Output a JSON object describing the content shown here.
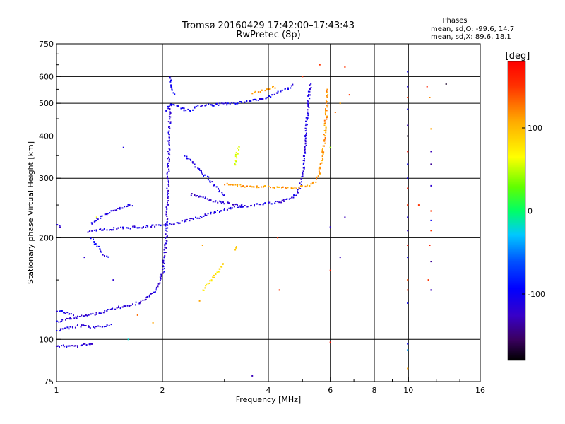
{
  "chart_data": {
    "type": "scatter",
    "title": "Tromsø 20160429 17:42:00–17:43:43",
    "subtitle": "RwPretec (8p)",
    "xlabel": "Frequency [MHz]",
    "ylabel": "Stationary phase Virtual Height [km]",
    "x_scale": "log",
    "y_scale": "log",
    "xlim": [
      1,
      16
    ],
    "ylim": [
      75,
      750
    ],
    "x_ticks": [
      1,
      2,
      4,
      6,
      8,
      10,
      16
    ],
    "y_ticks": [
      75,
      100,
      200,
      300,
      400,
      500,
      600,
      750
    ],
    "x_grid": [
      2,
      4,
      6,
      8,
      10
    ],
    "y_grid": [
      100,
      200,
      300,
      400,
      500,
      600
    ],
    "phase_stats": {
      "title": "Phases",
      "line_o": "mean, sd,O: -99.6, 14.7",
      "line_x": "mean, sd,X: 89.6, 18.1"
    },
    "colorbar": {
      "label": "[deg]",
      "range": [
        -180,
        180
      ],
      "ticks": [
        100,
        0,
        -100
      ],
      "tick_labels": [
        "100",
        "0",
        "-100"
      ]
    },
    "traces": [
      {
        "phase": -115,
        "points": [
          [
            1.0,
            96
          ],
          [
            1.05,
            96
          ],
          [
            1.1,
            96
          ],
          [
            1.15,
            96
          ],
          [
            1.2,
            97
          ],
          [
            1.24,
            97
          ],
          [
            1.27,
            98
          ]
        ]
      },
      {
        "phase": -115,
        "points": [
          [
            1.0,
            107
          ],
          [
            1.05,
            108
          ],
          [
            1.1,
            109
          ],
          [
            1.15,
            110
          ],
          [
            1.2,
            110
          ],
          [
            1.25,
            109
          ],
          [
            1.3,
            109
          ],
          [
            1.35,
            110
          ],
          [
            1.4,
            111
          ],
          [
            1.43,
            112
          ]
        ]
      },
      {
        "phase": -115,
        "points": [
          [
            1.0,
            113
          ],
          [
            1.05,
            115
          ],
          [
            1.1,
            116
          ],
          [
            1.15,
            117
          ],
          [
            1.2,
            118
          ],
          [
            1.25,
            119
          ],
          [
            1.3,
            120
          ],
          [
            1.35,
            121
          ],
          [
            1.4,
            123
          ],
          [
            1.5,
            125
          ],
          [
            1.6,
            126
          ],
          [
            1.7,
            129
          ],
          [
            1.8,
            133
          ],
          [
            1.9,
            139
          ],
          [
            1.95,
            148
          ],
          [
            2.0,
            160
          ],
          [
            2.02,
            175
          ],
          [
            2.04,
            200
          ],
          [
            2.05,
            230
          ],
          [
            2.06,
            270
          ],
          [
            2.07,
            330
          ],
          [
            2.08,
            400
          ],
          [
            2.09,
            460
          ],
          [
            2.1,
            500
          ]
        ]
      },
      {
        "phase": -110,
        "points": [
          [
            1.0,
            122
          ],
          [
            1.04,
            121
          ],
          [
            1.08,
            120
          ],
          [
            1.12,
            118
          ]
        ]
      },
      {
        "phase": -110,
        "points": [
          [
            1.22,
            210
          ],
          [
            1.3,
            212
          ],
          [
            1.4,
            213
          ],
          [
            1.5,
            214
          ],
          [
            1.6,
            215
          ],
          [
            1.7,
            216
          ],
          [
            1.8,
            217
          ],
          [
            1.9,
            218
          ],
          [
            2.0,
            219
          ],
          [
            2.2,
            222
          ],
          [
            2.4,
            228
          ],
          [
            2.6,
            233
          ],
          [
            2.8,
            239
          ],
          [
            3.0,
            244
          ],
          [
            3.2,
            247
          ],
          [
            3.5,
            250
          ],
          [
            3.8,
            252
          ],
          [
            4.0,
            254
          ],
          [
            4.3,
            257
          ],
          [
            4.6,
            262
          ],
          [
            4.8,
            270
          ],
          [
            4.9,
            285
          ],
          [
            5.0,
            310
          ],
          [
            5.05,
            360
          ],
          [
            5.1,
            420
          ],
          [
            5.15,
            480
          ],
          [
            5.2,
            530
          ],
          [
            5.25,
            580
          ]
        ]
      },
      {
        "phase": -110,
        "points": [
          [
            1.25,
            222
          ],
          [
            1.3,
            228
          ],
          [
            1.35,
            233
          ],
          [
            1.4,
            238
          ],
          [
            1.45,
            242
          ],
          [
            1.5,
            245
          ],
          [
            1.55,
            248
          ],
          [
            1.6,
            250
          ],
          [
            1.65,
            252
          ]
        ]
      },
      {
        "phase": -110,
        "points": [
          [
            1.0,
            218
          ],
          [
            1.03,
            217
          ]
        ]
      },
      {
        "phase": -105,
        "points": [
          [
            1.25,
            200
          ],
          [
            1.3,
            190
          ],
          [
            1.35,
            180
          ],
          [
            1.4,
            175
          ]
        ]
      },
      {
        "phase": -105,
        "points": [
          [
            2.05,
            480
          ],
          [
            2.1,
            500
          ],
          [
            2.2,
            490
          ],
          [
            2.3,
            480
          ],
          [
            2.4,
            480
          ],
          [
            2.5,
            490
          ],
          [
            2.6,
            495
          ],
          [
            2.8,
            497
          ],
          [
            3.0,
            500
          ],
          [
            3.2,
            503
          ],
          [
            3.5,
            507
          ],
          [
            3.7,
            515
          ],
          [
            3.9,
            520
          ],
          [
            4.1,
            530
          ],
          [
            4.3,
            543
          ],
          [
            4.5,
            555
          ],
          [
            4.7,
            570
          ]
        ]
      },
      {
        "phase": -105,
        "points": [
          [
            2.08,
            600
          ],
          [
            2.1,
            590
          ],
          [
            2.12,
            560
          ],
          [
            2.15,
            530
          ]
        ]
      },
      {
        "phase": -105,
        "points": [
          [
            2.3,
            350
          ],
          [
            2.4,
            340
          ],
          [
            2.5,
            325
          ],
          [
            2.6,
            310
          ],
          [
            2.7,
            300
          ],
          [
            2.8,
            288
          ],
          [
            2.9,
            275
          ],
          [
            3.0,
            265
          ]
        ]
      },
      {
        "phase": -120,
        "points": [
          [
            2.4,
            270
          ],
          [
            2.6,
            265
          ],
          [
            2.8,
            258
          ],
          [
            3.0,
            255
          ],
          [
            3.2,
            252
          ],
          [
            3.4,
            250
          ]
        ]
      },
      {
        "phase": 115,
        "points": [
          [
            3.0,
            290
          ],
          [
            3.2,
            287
          ],
          [
            3.4,
            286
          ],
          [
            3.6,
            285
          ],
          [
            3.8,
            285
          ],
          [
            4.0,
            284
          ],
          [
            4.2,
            284
          ],
          [
            4.4,
            283
          ],
          [
            4.6,
            282
          ],
          [
            4.8,
            283
          ],
          [
            5.0,
            285
          ],
          [
            5.2,
            288
          ],
          [
            5.4,
            295
          ],
          [
            5.55,
            310
          ],
          [
            5.65,
            340
          ],
          [
            5.75,
            390
          ],
          [
            5.8,
            450
          ],
          [
            5.85,
            520
          ],
          [
            5.88,
            560
          ]
        ]
      },
      {
        "phase": 115,
        "points": [
          [
            3.6,
            540
          ],
          [
            3.8,
            548
          ],
          [
            4.0,
            556
          ],
          [
            4.2,
            563
          ]
        ]
      },
      {
        "phase": 60,
        "points": [
          [
            3.2,
            330
          ],
          [
            3.25,
            360
          ],
          [
            3.3,
            380
          ]
        ]
      },
      {
        "phase": 80,
        "points": [
          [
            2.6,
            140
          ],
          [
            2.7,
            148
          ],
          [
            2.8,
            155
          ],
          [
            2.9,
            163
          ],
          [
            3.0,
            170
          ]
        ]
      },
      {
        "phase": 90,
        "points": [
          [
            3.2,
            185
          ],
          [
            3.25,
            190
          ]
        ]
      }
    ],
    "scatter_points": [
      {
        "x": 9.95,
        "y": 620,
        "phase": -100
      },
      {
        "x": 9.95,
        "y": 560,
        "phase": -110
      },
      {
        "x": 9.95,
        "y": 520,
        "phase": 150
      },
      {
        "x": 9.95,
        "y": 480,
        "phase": -100
      },
      {
        "x": 9.95,
        "y": 430,
        "phase": -130
      },
      {
        "x": 9.95,
        "y": 400,
        "phase": -170
      },
      {
        "x": 9.95,
        "y": 360,
        "phase": 170
      },
      {
        "x": 9.95,
        "y": 330,
        "phase": -100
      },
      {
        "x": 9.95,
        "y": 300,
        "phase": -100
      },
      {
        "x": 9.95,
        "y": 280,
        "phase": 160
      },
      {
        "x": 9.95,
        "y": 250,
        "phase": 150
      },
      {
        "x": 9.95,
        "y": 230,
        "phase": -110
      },
      {
        "x": 9.95,
        "y": 210,
        "phase": -120
      },
      {
        "x": 9.95,
        "y": 190,
        "phase": 160
      },
      {
        "x": 9.95,
        "y": 175,
        "phase": -100
      },
      {
        "x": 9.95,
        "y": 150,
        "phase": 140
      },
      {
        "x": 9.95,
        "y": 140,
        "phase": 150
      },
      {
        "x": 9.95,
        "y": 128,
        "phase": -100
      },
      {
        "x": 9.95,
        "y": 97,
        "phase": -100
      },
      {
        "x": 9.95,
        "y": 93,
        "phase": -40
      },
      {
        "x": 9.95,
        "y": 82,
        "phase": 110
      },
      {
        "x": 11.3,
        "y": 560,
        "phase": 160
      },
      {
        "x": 11.5,
        "y": 520,
        "phase": 120
      },
      {
        "x": 11.6,
        "y": 420,
        "phase": 110
      },
      {
        "x": 11.6,
        "y": 360,
        "phase": -130
      },
      {
        "x": 11.6,
        "y": 330,
        "phase": -140
      },
      {
        "x": 11.6,
        "y": 285,
        "phase": -120
      },
      {
        "x": 11.6,
        "y": 240,
        "phase": 150
      },
      {
        "x": 11.6,
        "y": 225,
        "phase": -100
      },
      {
        "x": 11.6,
        "y": 210,
        "phase": 150
      },
      {
        "x": 11.5,
        "y": 190,
        "phase": 160
      },
      {
        "x": 11.6,
        "y": 170,
        "phase": -140
      },
      {
        "x": 11.4,
        "y": 150,
        "phase": 150
      },
      {
        "x": 11.6,
        "y": 140,
        "phase": -130
      },
      {
        "x": 12.8,
        "y": 570,
        "phase": -170
      },
      {
        "x": 10.7,
        "y": 250,
        "phase": 150
      },
      {
        "x": 6.6,
        "y": 640,
        "phase": 150
      },
      {
        "x": 6.8,
        "y": 530,
        "phase": 150
      },
      {
        "x": 6.4,
        "y": 500,
        "phase": 110
      },
      {
        "x": 6.2,
        "y": 470,
        "phase": 130
      },
      {
        "x": 6.0,
        "y": 370,
        "phase": 40
      },
      {
        "x": 6.6,
        "y": 230,
        "phase": -130
      },
      {
        "x": 6.0,
        "y": 215,
        "phase": -120
      },
      {
        "x": 6.4,
        "y": 175,
        "phase": -130
      },
      {
        "x": 6.0,
        "y": 160,
        "phase": 160
      },
      {
        "x": 6.0,
        "y": 98,
        "phase": 170
      },
      {
        "x": 5.0,
        "y": 600,
        "phase": 150
      },
      {
        "x": 5.6,
        "y": 650,
        "phase": 150
      },
      {
        "x": 4.25,
        "y": 200,
        "phase": 150
      },
      {
        "x": 4.3,
        "y": 140,
        "phase": 150
      },
      {
        "x": 3.6,
        "y": 78,
        "phase": -130
      },
      {
        "x": 1.55,
        "y": 370,
        "phase": -110
      },
      {
        "x": 1.3,
        "y": 230,
        "phase": 60
      },
      {
        "x": 1.7,
        "y": 118,
        "phase": 130
      },
      {
        "x": 1.88,
        "y": 112,
        "phase": 110
      },
      {
        "x": 1.6,
        "y": 100,
        "phase": -20
      },
      {
        "x": 2.6,
        "y": 190,
        "phase": 110
      },
      {
        "x": 2.55,
        "y": 130,
        "phase": 110
      },
      {
        "x": 1.45,
        "y": 150,
        "phase": -120
      },
      {
        "x": 1.2,
        "y": 175,
        "phase": -120
      }
    ]
  }
}
